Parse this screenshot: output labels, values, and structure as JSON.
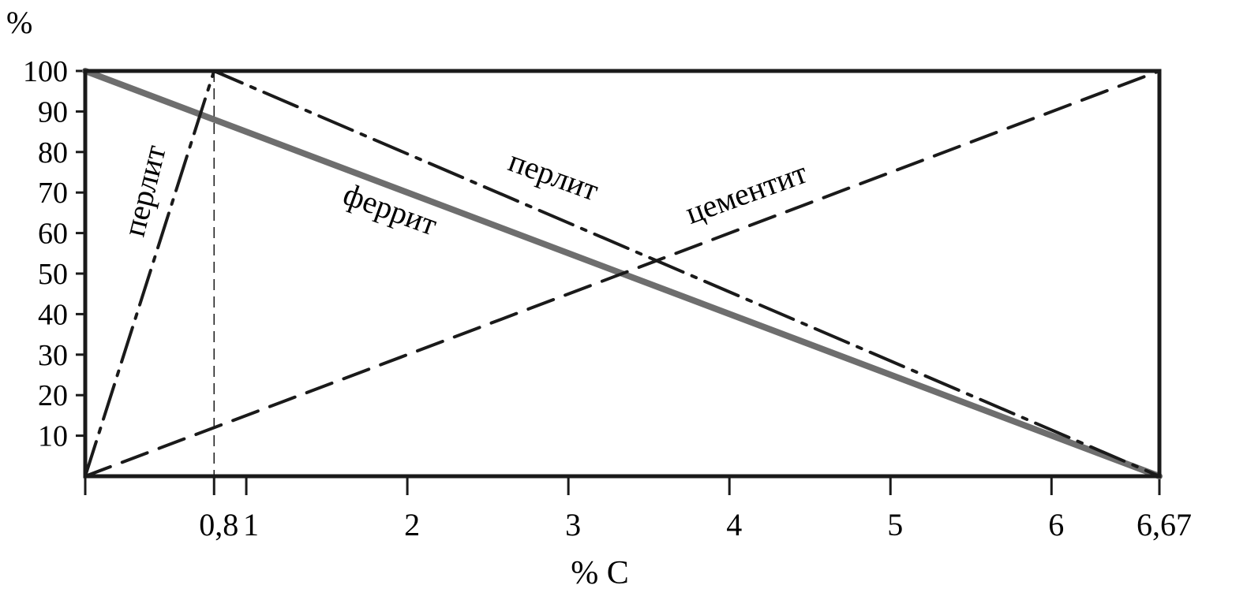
{
  "chart_data": {
    "type": "line",
    "ylabel": "%",
    "xlabel": "% C",
    "xlim": [
      0,
      6.67
    ],
    "ylim": [
      0,
      100
    ],
    "x_ticks": [
      {
        "value": 0.8,
        "label": "0,8"
      },
      {
        "value": 1,
        "label": "1"
      },
      {
        "value": 2,
        "label": "2"
      },
      {
        "value": 3,
        "label": "3"
      },
      {
        "value": 4,
        "label": "4"
      },
      {
        "value": 5,
        "label": "5"
      },
      {
        "value": 6,
        "label": "6"
      },
      {
        "value": 6.67,
        "label": "6,67"
      }
    ],
    "y_ticks": [
      {
        "value": 10,
        "label": "10"
      },
      {
        "value": 20,
        "label": "20"
      },
      {
        "value": 30,
        "label": "30"
      },
      {
        "value": 40,
        "label": "40"
      },
      {
        "value": 50,
        "label": "50"
      },
      {
        "value": 60,
        "label": "60"
      },
      {
        "value": 70,
        "label": "70"
      },
      {
        "value": 80,
        "label": "80"
      },
      {
        "value": 90,
        "label": "90"
      },
      {
        "value": 100,
        "label": "100"
      }
    ],
    "reference_line_x": 0.8,
    "grid": false,
    "series": [
      {
        "name": "феррит",
        "style": "solid",
        "color": "#6e6e6e",
        "points": [
          [
            0,
            100
          ],
          [
            6.67,
            0
          ]
        ]
      },
      {
        "name": "перлит",
        "style": "dash-dot",
        "color": "#1a1a1a",
        "points": [
          [
            0,
            0
          ],
          [
            0.8,
            100
          ],
          [
            6.67,
            0
          ]
        ]
      },
      {
        "name": "цементит",
        "style": "dashed",
        "color": "#1a1a1a",
        "points": [
          [
            0,
            0
          ],
          [
            6.67,
            100
          ]
        ]
      }
    ],
    "annotations": [
      {
        "id": "perlit-left",
        "text": "перлит"
      },
      {
        "id": "perlit-right",
        "text": "перлит"
      },
      {
        "id": "ferrit",
        "text": "феррит"
      },
      {
        "id": "cementit",
        "text": "цементит"
      }
    ]
  }
}
